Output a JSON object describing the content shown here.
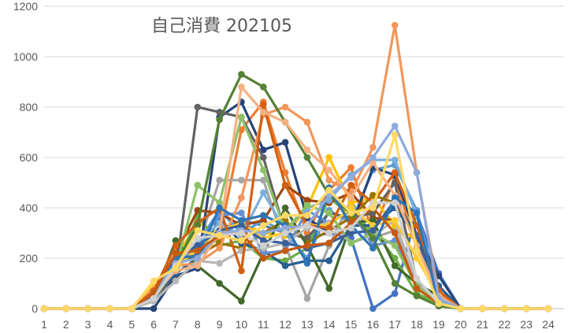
{
  "chart_data": {
    "type": "line",
    "title": "自己消費 202105",
    "xlabel": "",
    "ylabel": "",
    "x": [
      1,
      2,
      3,
      4,
      5,
      6,
      7,
      8,
      9,
      10,
      11,
      12,
      13,
      14,
      15,
      16,
      17,
      18,
      19,
      20,
      21,
      22,
      23,
      24
    ],
    "ylim": [
      0,
      1200
    ],
    "yticks": [
      0,
      200,
      400,
      600,
      800,
      1000,
      1200
    ],
    "grid": true,
    "legend": "none",
    "series": [
      {
        "color": "#4472c4",
        "values": [
          0,
          0,
          0,
          0,
          0,
          60,
          160,
          250,
          310,
          350,
          330,
          300,
          280,
          300,
          280,
          0,
          60,
          380,
          140,
          0,
          0,
          0,
          0,
          0
        ]
      },
      {
        "color": "#ed7d31",
        "values": [
          0,
          0,
          0,
          0,
          0,
          90,
          170,
          220,
          280,
          710,
          820,
          540,
          300,
          470,
          560,
          300,
          520,
          240,
          40,
          0,
          0,
          0,
          0,
          0
        ]
      },
      {
        "color": "#a5a5a5",
        "values": [
          0,
          0,
          0,
          0,
          0,
          40,
          180,
          240,
          510,
          510,
          510,
          250,
          40,
          250,
          430,
          280,
          310,
          110,
          20,
          0,
          0,
          0,
          0,
          0
        ]
      },
      {
        "color": "#ffc000",
        "values": [
          0,
          0,
          0,
          0,
          0,
          80,
          200,
          340,
          300,
          340,
          300,
          290,
          400,
          600,
          420,
          440,
          330,
          270,
          30,
          0,
          0,
          0,
          0,
          0
        ]
      },
      {
        "color": "#5b9bd5",
        "values": [
          0,
          0,
          0,
          0,
          0,
          70,
          190,
          260,
          390,
          300,
          350,
          300,
          200,
          390,
          340,
          550,
          570,
          390,
          60,
          0,
          0,
          0,
          0,
          0
        ]
      },
      {
        "color": "#70ad47",
        "values": [
          0,
          0,
          0,
          0,
          0,
          50,
          150,
          370,
          250,
          270,
          200,
          190,
          240,
          440,
          370,
          310,
          200,
          60,
          20,
          0,
          0,
          0,
          0,
          0
        ]
      },
      {
        "color": "#264478",
        "values": [
          0,
          0,
          0,
          0,
          0,
          0,
          130,
          160,
          760,
          820,
          630,
          660,
          360,
          300,
          320,
          560,
          530,
          290,
          130,
          0,
          0,
          0,
          0,
          0
        ]
      },
      {
        "color": "#9e480e",
        "values": [
          0,
          0,
          0,
          0,
          0,
          60,
          220,
          390,
          380,
          330,
          350,
          490,
          430,
          420,
          460,
          360,
          350,
          200,
          70,
          0,
          0,
          0,
          0,
          0
        ]
      },
      {
        "color": "#636363",
        "values": [
          0,
          0,
          0,
          0,
          0,
          30,
          140,
          800,
          780,
          760,
          600,
          300,
          280,
          380,
          360,
          380,
          500,
          110,
          20,
          0,
          0,
          0,
          0,
          0
        ]
      },
      {
        "color": "#997300",
        "values": [
          0,
          0,
          0,
          0,
          0,
          70,
          180,
          210,
          260,
          240,
          300,
          350,
          260,
          310,
          360,
          450,
          420,
          290,
          50,
          0,
          0,
          0,
          0,
          0
        ]
      },
      {
        "color": "#255e91",
        "values": [
          0,
          0,
          0,
          0,
          0,
          50,
          140,
          200,
          360,
          260,
          230,
          170,
          190,
          190,
          330,
          330,
          400,
          290,
          90,
          0,
          0,
          0,
          0,
          0
        ]
      },
      {
        "color": "#43682b",
        "values": [
          0,
          0,
          0,
          0,
          0,
          40,
          270,
          170,
          100,
          30,
          220,
          400,
          250,
          80,
          340,
          350,
          170,
          100,
          50,
          0,
          0,
          0,
          0,
          0
        ]
      },
      {
        "color": "#698ed0",
        "values": [
          0,
          0,
          0,
          0,
          0,
          50,
          150,
          260,
          370,
          380,
          220,
          230,
          390,
          340,
          390,
          250,
          270,
          100,
          20,
          0,
          0,
          0,
          0,
          0
        ]
      },
      {
        "color": "#f1975a",
        "values": [
          0,
          0,
          0,
          0,
          0,
          80,
          170,
          180,
          240,
          440,
          770,
          800,
          740,
          510,
          460,
          640,
          1125,
          540,
          60,
          0,
          0,
          0,
          0,
          0
        ]
      },
      {
        "color": "#b7b7b7",
        "values": [
          0,
          0,
          0,
          0,
          0,
          30,
          110,
          190,
          180,
          230,
          240,
          260,
          320,
          340,
          260,
          290,
          350,
          100,
          20,
          0,
          0,
          0,
          0,
          0
        ]
      },
      {
        "color": "#ffcd33",
        "values": [
          0,
          0,
          0,
          0,
          0,
          100,
          160,
          240,
          310,
          340,
          280,
          300,
          330,
          330,
          400,
          330,
          350,
          200,
          50,
          0,
          0,
          0,
          0,
          0
        ]
      },
      {
        "color": "#7cafdd",
        "values": [
          0,
          0,
          0,
          0,
          0,
          60,
          180,
          260,
          340,
          290,
          460,
          310,
          400,
          430,
          530,
          590,
          590,
          370,
          30,
          0,
          0,
          0,
          0,
          0
        ]
      },
      {
        "color": "#8cc168",
        "values": [
          0,
          0,
          0,
          0,
          0,
          40,
          160,
          490,
          420,
          760,
          550,
          310,
          410,
          380,
          260,
          300,
          250,
          90,
          20,
          0,
          0,
          0,
          0,
          0
        ]
      },
      {
        "color": "#3a5f99",
        "values": [
          0,
          0,
          0,
          0,
          0,
          60,
          200,
          250,
          310,
          330,
          270,
          260,
          240,
          260,
          300,
          310,
          430,
          290,
          20,
          0,
          0,
          0,
          0,
          0
        ]
      },
      {
        "color": "#d26012",
        "values": [
          0,
          0,
          0,
          0,
          0,
          70,
          250,
          340,
          400,
          150,
          810,
          490,
          330,
          320,
          490,
          420,
          540,
          330,
          70,
          0,
          0,
          0,
          0,
          0
        ]
      },
      {
        "color": "#548235",
        "values": [
          0,
          0,
          0,
          0,
          0,
          40,
          180,
          330,
          750,
          930,
          880,
          740,
          600,
          450,
          380,
          280,
          100,
          50,
          10,
          0,
          0,
          0,
          0,
          0
        ]
      },
      {
        "color": "#f4b183",
        "values": [
          0,
          0,
          0,
          0,
          0,
          60,
          150,
          170,
          300,
          880,
          780,
          740,
          630,
          550,
          440,
          580,
          450,
          250,
          50,
          0,
          0,
          0,
          0,
          0
        ]
      },
      {
        "color": "#2e75b6",
        "values": [
          0,
          0,
          0,
          0,
          0,
          40,
          200,
          210,
          400,
          350,
          370,
          330,
          180,
          480,
          330,
          240,
          440,
          380,
          20,
          0,
          0,
          0,
          0,
          0
        ]
      },
      {
        "color": "#8faadc",
        "values": [
          0,
          0,
          0,
          0,
          0,
          60,
          180,
          200,
          300,
          310,
          300,
          320,
          330,
          450,
          520,
          600,
          725,
          540,
          40,
          0,
          0,
          0,
          0,
          0
        ]
      },
      {
        "color": "#c55a11",
        "values": [
          0,
          0,
          0,
          0,
          0,
          60,
          220,
          230,
          290,
          300,
          200,
          230,
          250,
          260,
          340,
          400,
          300,
          80,
          20,
          0,
          0,
          0,
          0,
          0
        ]
      },
      {
        "color": "#d0d0d0",
        "values": [
          0,
          0,
          0,
          0,
          0,
          40,
          170,
          280,
          290,
          300,
          250,
          300,
          330,
          300,
          320,
          420,
          420,
          120,
          20,
          0,
          0,
          0,
          0,
          0
        ]
      },
      {
        "color": "#ffd966",
        "values": [
          0,
          0,
          0,
          0,
          0,
          110,
          160,
          310,
          290,
          270,
          330,
          370,
          370,
          470,
          380,
          400,
          690,
          230,
          20,
          0,
          0,
          0,
          0,
          0
        ]
      }
    ]
  }
}
